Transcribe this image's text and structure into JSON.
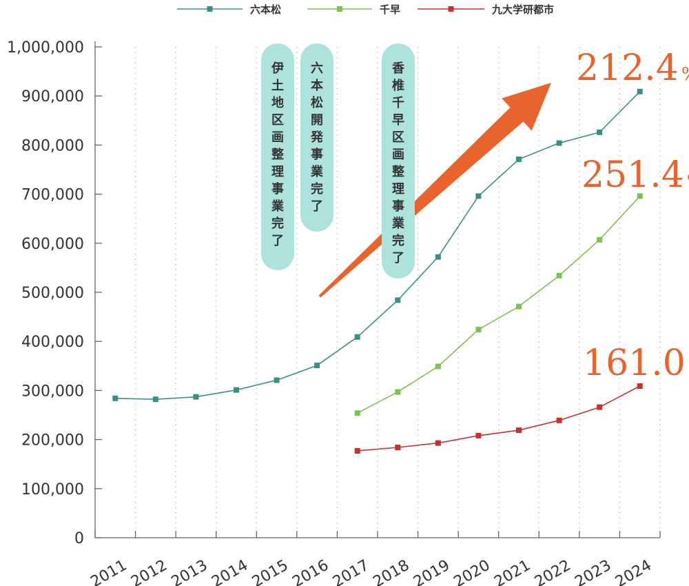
{
  "chart_data": {
    "type": "line",
    "categories": [
      "2011",
      "2012",
      "2013",
      "2014",
      "2015",
      "2016",
      "2017",
      "2018",
      "2019",
      "2020",
      "2021",
      "2022",
      "2023",
      "2024"
    ],
    "ylim": [
      0,
      1000000
    ],
    "yticks": [
      0,
      100000,
      200000,
      300000,
      400000,
      500000,
      600000,
      700000,
      800000,
      900000,
      1000000
    ],
    "ytick_labels": [
      "0",
      "100,000",
      "200,000",
      "300,000",
      "400,000",
      "500,000",
      "600,000",
      "700,000",
      "800,000",
      "900,000",
      "1,000,000"
    ],
    "grid": "vertical-dotted",
    "legend": "top-center",
    "series": [
      {
        "name": "六本松",
        "color": "#3a8f84",
        "values": [
          284000,
          282000,
          287000,
          301000,
          321000,
          351000,
          409000,
          484000,
          572000,
          696000,
          771000,
          804000,
          826000,
          909000
        ]
      },
      {
        "name": "千早",
        "color": "#7cc34e",
        "values": [
          null,
          null,
          null,
          null,
          null,
          null,
          254000,
          297000,
          349000,
          424000,
          471000,
          534000,
          607000,
          696000
        ]
      },
      {
        "name": "九大学研都市",
        "color": "#c8302f",
        "values": [
          null,
          null,
          null,
          null,
          null,
          null,
          177000,
          184000,
          193000,
          208000,
          219000,
          239000,
          266000,
          309000
        ]
      }
    ],
    "annotations": [
      {
        "id": "pill1",
        "text": "伊土地区画整理事業完了"
      },
      {
        "id": "pill2",
        "text": "六本松開発事業完了"
      },
      {
        "id": "pill3",
        "text": "香椎千早区画整理事業完了"
      }
    ],
    "growth_labels": [
      {
        "value": "212.4",
        "unit": "%"
      },
      {
        "value": "251.4",
        "unit": "%"
      },
      {
        "value": "161.0",
        "unit": "%"
      }
    ],
    "colors": {
      "arrow": "#e8642c",
      "pill": "#aee3dc",
      "axis": "#666666"
    }
  }
}
